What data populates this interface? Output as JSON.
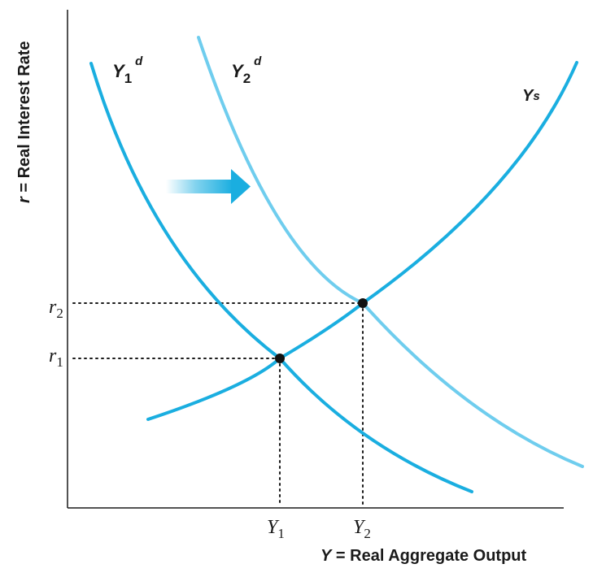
{
  "axes": {
    "y_title_var": "r",
    "y_title_rest": " = Real Interest Rate",
    "x_title_var": "Y",
    "x_title_rest": " = Real Aggregate Output"
  },
  "curves": {
    "demand1": {
      "base": "Y",
      "sub": "1",
      "sup": "d"
    },
    "demand2": {
      "base": "Y",
      "sub": "2",
      "sup": "d"
    },
    "supply": {
      "base": "Y",
      "sup": "s"
    }
  },
  "ticks": {
    "r1": {
      "base": "r",
      "sub": "1"
    },
    "r2": {
      "base": "r",
      "sub": "2"
    },
    "y1": {
      "base": "Y",
      "sub": "1"
    },
    "y2": {
      "base": "Y",
      "sub": "2"
    }
  },
  "colors": {
    "demand1": "#1aaee0",
    "demand2": "#6fcdee",
    "supply": "#1aaee0",
    "arrow": "#1aaee0",
    "axis": "#1a1a1a",
    "point": "#111111"
  },
  "icons": {
    "shift": "right-arrow-icon"
  }
}
